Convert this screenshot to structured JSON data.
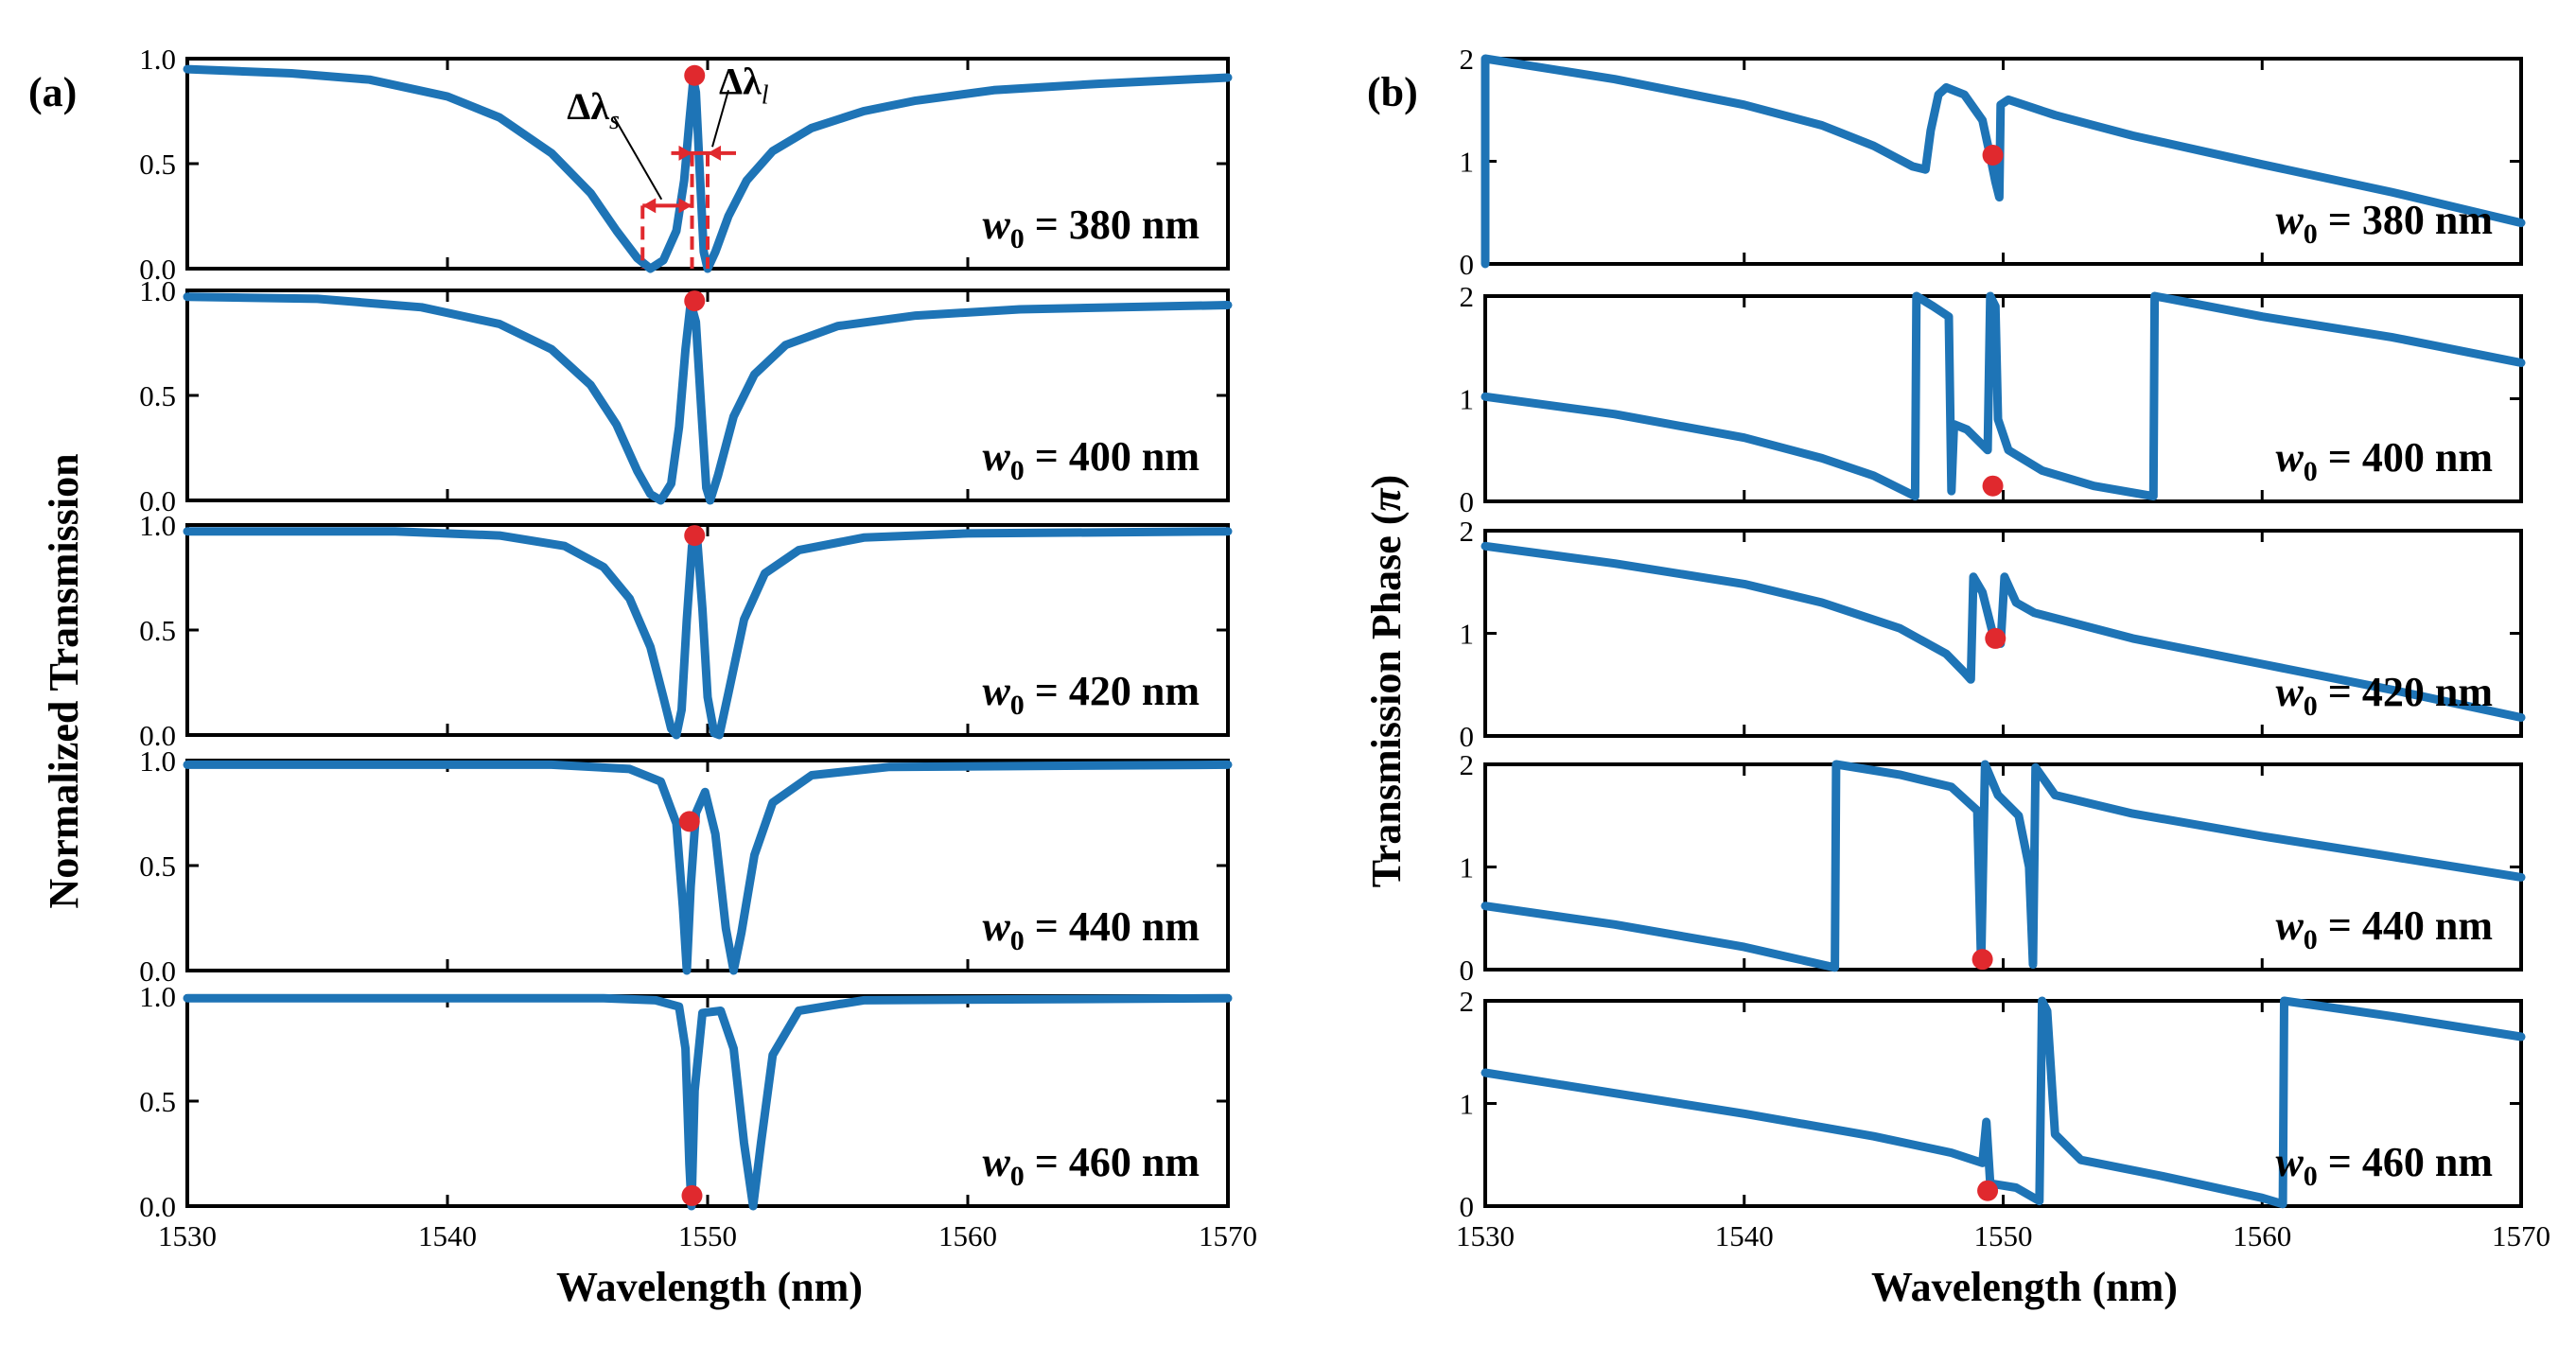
{
  "chart_data": [
    {
      "type": "line",
      "panel_label": "(a)",
      "xlabel": "Wavelength (nm)",
      "ylabel": "Normalized Transmission",
      "xlim": [
        1530,
        1570
      ],
      "xticks": [
        "1530",
        "1540",
        "1550",
        "1560",
        "1570"
      ],
      "yticks": [
        "0.0",
        "0.5",
        "1.0"
      ],
      "ylim": [
        0,
        1
      ],
      "annotations": {
        "dl_s": "Δλ",
        "dl_s_sub": "s",
        "dl_l": "Δλ",
        "dl_l_sub": "l"
      },
      "subplots": [
        {
          "w_prefix": "w",
          "w_sub": "0",
          "w_text": " = 380 nm",
          "points": [
            [
              1530,
              0.95
            ],
            [
              1534,
              0.93
            ],
            [
              1537,
              0.9
            ],
            [
              1540,
              0.82
            ],
            [
              1542,
              0.72
            ],
            [
              1544,
              0.55
            ],
            [
              1545.5,
              0.36
            ],
            [
              1546.5,
              0.18
            ],
            [
              1547.3,
              0.05
            ],
            [
              1547.8,
              0.0
            ],
            [
              1548.3,
              0.04
            ],
            [
              1548.8,
              0.18
            ],
            [
              1549.1,
              0.42
            ],
            [
              1549.3,
              0.7
            ],
            [
              1549.45,
              0.9
            ],
            [
              1549.55,
              0.84
            ],
            [
              1549.7,
              0.45
            ],
            [
              1549.85,
              0.08
            ],
            [
              1550,
              0.0
            ],
            [
              1550.3,
              0.08
            ],
            [
              1550.8,
              0.25
            ],
            [
              1551.5,
              0.42
            ],
            [
              1552.5,
              0.56
            ],
            [
              1554,
              0.67
            ],
            [
              1556,
              0.75
            ],
            [
              1558,
              0.8
            ],
            [
              1561,
              0.85
            ],
            [
              1565,
              0.88
            ],
            [
              1570,
              0.91
            ]
          ],
          "marker": [
            1549.5,
            0.92
          ]
        },
        {
          "w_prefix": "w",
          "w_sub": "0",
          "w_text": " = 400 nm",
          "points": [
            [
              1530,
              0.97
            ],
            [
              1535,
              0.96
            ],
            [
              1539,
              0.92
            ],
            [
              1542,
              0.84
            ],
            [
              1544,
              0.72
            ],
            [
              1545.5,
              0.55
            ],
            [
              1546.5,
              0.36
            ],
            [
              1547.3,
              0.14
            ],
            [
              1547.8,
              0.03
            ],
            [
              1548.2,
              0.0
            ],
            [
              1548.6,
              0.08
            ],
            [
              1548.9,
              0.35
            ],
            [
              1549.15,
              0.72
            ],
            [
              1549.35,
              0.94
            ],
            [
              1549.55,
              0.85
            ],
            [
              1549.75,
              0.45
            ],
            [
              1549.95,
              0.06
            ],
            [
              1550.1,
              0.0
            ],
            [
              1550.4,
              0.12
            ],
            [
              1551,
              0.4
            ],
            [
              1551.8,
              0.6
            ],
            [
              1553,
              0.74
            ],
            [
              1555,
              0.83
            ],
            [
              1558,
              0.88
            ],
            [
              1562,
              0.91
            ],
            [
              1570,
              0.93
            ]
          ],
          "marker": [
            1549.5,
            0.95
          ]
        },
        {
          "w_prefix": "w",
          "w_sub": "0",
          "w_text": " = 420 nm",
          "points": [
            [
              1530,
              0.97
            ],
            [
              1538,
              0.97
            ],
            [
              1542,
              0.95
            ],
            [
              1544.5,
              0.9
            ],
            [
              1546,
              0.8
            ],
            [
              1547,
              0.65
            ],
            [
              1547.8,
              0.42
            ],
            [
              1548.3,
              0.18
            ],
            [
              1548.6,
              0.03
            ],
            [
              1548.8,
              0.0
            ],
            [
              1549,
              0.12
            ],
            [
              1549.2,
              0.55
            ],
            [
              1549.4,
              0.9
            ],
            [
              1549.6,
              0.93
            ],
            [
              1549.8,
              0.6
            ],
            [
              1550,
              0.18
            ],
            [
              1550.25,
              0.01
            ],
            [
              1550.45,
              0.0
            ],
            [
              1550.8,
              0.2
            ],
            [
              1551.4,
              0.55
            ],
            [
              1552.2,
              0.77
            ],
            [
              1553.5,
              0.88
            ],
            [
              1556,
              0.94
            ],
            [
              1560,
              0.96
            ],
            [
              1570,
              0.97
            ]
          ],
          "marker": [
            1549.5,
            0.95
          ]
        },
        {
          "w_prefix": "w",
          "w_sub": "0",
          "w_text": " = 440 nm",
          "points": [
            [
              1530,
              0.98
            ],
            [
              1544,
              0.98
            ],
            [
              1547,
              0.96
            ],
            [
              1548.2,
              0.9
            ],
            [
              1548.8,
              0.7
            ],
            [
              1549.05,
              0.3
            ],
            [
              1549.2,
              0.0
            ],
            [
              1549.35,
              0.4
            ],
            [
              1549.55,
              0.75
            ],
            [
              1549.9,
              0.85
            ],
            [
              1550.3,
              0.65
            ],
            [
              1550.7,
              0.2
            ],
            [
              1551,
              0.0
            ],
            [
              1551.3,
              0.18
            ],
            [
              1551.8,
              0.55
            ],
            [
              1552.5,
              0.8
            ],
            [
              1554,
              0.93
            ],
            [
              1557,
              0.97
            ],
            [
              1570,
              0.98
            ]
          ],
          "marker": [
            1549.3,
            0.71
          ]
        },
        {
          "w_prefix": "w",
          "w_sub": "0",
          "w_text": " = 460 nm",
          "points": [
            [
              1530,
              0.99
            ],
            [
              1546,
              0.99
            ],
            [
              1548,
              0.98
            ],
            [
              1548.9,
              0.95
            ],
            [
              1549.15,
              0.75
            ],
            [
              1549.3,
              0.2
            ],
            [
              1549.38,
              0.0
            ],
            [
              1549.5,
              0.55
            ],
            [
              1549.8,
              0.92
            ],
            [
              1550.5,
              0.93
            ],
            [
              1551,
              0.75
            ],
            [
              1551.4,
              0.3
            ],
            [
              1551.75,
              0.0
            ],
            [
              1552.05,
              0.3
            ],
            [
              1552.5,
              0.72
            ],
            [
              1553.5,
              0.93
            ],
            [
              1556,
              0.98
            ],
            [
              1570,
              0.99
            ]
          ],
          "marker": [
            1549.4,
            0.05
          ]
        }
      ]
    },
    {
      "type": "line",
      "panel_label": "(b)",
      "xlabel": "Wavelength (nm)",
      "ylabel": "Transmission Phase (π)",
      "ylabel_main": "Transmission Phase (",
      "ylabel_sym": "π",
      "ylabel_end": ")",
      "xlim": [
        1530,
        1570
      ],
      "xticks": [
        "1530",
        "1540",
        "1550",
        "1560",
        "1570"
      ],
      "yticks": [
        "0",
        "1",
        "2"
      ],
      "ylim": [
        0,
        2
      ],
      "subplots": [
        {
          "w_prefix": "w",
          "w_sub": "0",
          "w_text": " = 380 nm",
          "points": [
            [
              1530,
              0.0
            ],
            [
              1530,
              2.0
            ],
            [
              1535,
              1.8
            ],
            [
              1540,
              1.55
            ],
            [
              1543,
              1.35
            ],
            [
              1545,
              1.15
            ],
            [
              1546.5,
              0.95
            ],
            [
              1547,
              0.92
            ],
            [
              1547.2,
              1.3
            ],
            [
              1547.5,
              1.65
            ],
            [
              1547.8,
              1.72
            ],
            [
              1548.5,
              1.65
            ],
            [
              1549.2,
              1.4
            ],
            [
              1549.5,
              1.05
            ],
            [
              1549.7,
              0.8
            ],
            [
              1549.85,
              0.65
            ],
            [
              1549.9,
              1.55
            ],
            [
              1550.2,
              1.6
            ],
            [
              1552,
              1.45
            ],
            [
              1555,
              1.25
            ],
            [
              1560,
              0.97
            ],
            [
              1565,
              0.7
            ],
            [
              1570,
              0.4
            ]
          ],
          "marker": [
            1549.6,
            1.06
          ]
        },
        {
          "w_prefix": "w",
          "w_sub": "0",
          "w_text": " = 400 nm",
          "points": [
            [
              1530,
              1.02
            ],
            [
              1535,
              0.85
            ],
            [
              1540,
              0.62
            ],
            [
              1543,
              0.42
            ],
            [
              1545,
              0.25
            ],
            [
              1546.6,
              0.05
            ],
            [
              1546.65,
              2.0
            ],
            [
              1547.3,
              1.9
            ],
            [
              1547.9,
              1.8
            ],
            [
              1548,
              0.1
            ],
            [
              1548.1,
              0.75
            ],
            [
              1548.6,
              0.7
            ],
            [
              1549.2,
              0.55
            ],
            [
              1549.4,
              0.5
            ],
            [
              1549.5,
              2.0
            ],
            [
              1549.7,
              1.9
            ],
            [
              1549.8,
              0.8
            ],
            [
              1550.2,
              0.5
            ],
            [
              1551.5,
              0.3
            ],
            [
              1553.5,
              0.15
            ],
            [
              1555.8,
              0.05
            ],
            [
              1555.85,
              2.0
            ],
            [
              1560,
              1.8
            ],
            [
              1565,
              1.6
            ],
            [
              1570,
              1.35
            ]
          ],
          "marker": [
            1549.6,
            0.15
          ]
        },
        {
          "w_prefix": "w",
          "w_sub": "0",
          "w_text": " = 420 nm",
          "points": [
            [
              1530,
              1.85
            ],
            [
              1535,
              1.68
            ],
            [
              1540,
              1.48
            ],
            [
              1543,
              1.3
            ],
            [
              1546,
              1.05
            ],
            [
              1547.8,
              0.8
            ],
            [
              1548.5,
              0.62
            ],
            [
              1548.75,
              0.55
            ],
            [
              1548.85,
              1.55
            ],
            [
              1549.2,
              1.4
            ],
            [
              1549.6,
              1.0
            ],
            [
              1549.9,
              0.9
            ],
            [
              1550.05,
              1.55
            ],
            [
              1550.5,
              1.3
            ],
            [
              1551.2,
              1.2
            ],
            [
              1555,
              0.95
            ],
            [
              1560,
              0.7
            ],
            [
              1565,
              0.45
            ],
            [
              1570,
              0.18
            ]
          ],
          "marker": [
            1549.7,
            0.95
          ]
        },
        {
          "w_prefix": "w",
          "w_sub": "0",
          "w_text": " = 440 nm",
          "points": [
            [
              1530,
              0.62
            ],
            [
              1535,
              0.44
            ],
            [
              1540,
              0.22
            ],
            [
              1543.5,
              0.02
            ],
            [
              1543.55,
              2.0
            ],
            [
              1546,
              1.9
            ],
            [
              1548,
              1.78
            ],
            [
              1549,
              1.55
            ],
            [
              1549.15,
              0.05
            ],
            [
              1549.3,
              2.0
            ],
            [
              1549.8,
              1.7
            ],
            [
              1550.6,
              1.5
            ],
            [
              1551,
              1.0
            ],
            [
              1551.15,
              0.05
            ],
            [
              1551.25,
              1.97
            ],
            [
              1552,
              1.7
            ],
            [
              1555,
              1.52
            ],
            [
              1560,
              1.3
            ],
            [
              1565,
              1.1
            ],
            [
              1570,
              0.9
            ]
          ],
          "marker": [
            1549.2,
            0.1
          ]
        },
        {
          "w_prefix": "w",
          "w_sub": "0",
          "w_text": " = 460 nm",
          "points": [
            [
              1530,
              1.3
            ],
            [
              1535,
              1.1
            ],
            [
              1540,
              0.9
            ],
            [
              1545,
              0.68
            ],
            [
              1548,
              0.52
            ],
            [
              1549.2,
              0.42
            ],
            [
              1549.35,
              0.82
            ],
            [
              1549.5,
              0.22
            ],
            [
              1550.5,
              0.18
            ],
            [
              1551.4,
              0.05
            ],
            [
              1551.5,
              2.0
            ],
            [
              1551.7,
              1.9
            ],
            [
              1552,
              0.7
            ],
            [
              1553,
              0.45
            ],
            [
              1556,
              0.3
            ],
            [
              1560,
              0.08
            ],
            [
              1560.8,
              0.02
            ],
            [
              1560.85,
              2.0
            ],
            [
              1565,
              1.85
            ],
            [
              1570,
              1.65
            ]
          ],
          "marker": [
            1549.4,
            0.15
          ]
        }
      ]
    }
  ]
}
